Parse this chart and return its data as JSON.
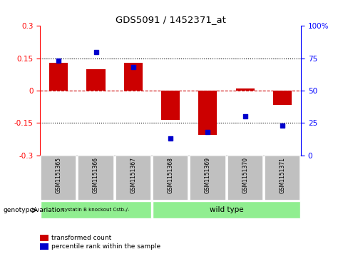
{
  "title": "GDS5091 / 1452371_at",
  "samples": [
    "GSM1151365",
    "GSM1151366",
    "GSM1151367",
    "GSM1151368",
    "GSM1151369",
    "GSM1151370",
    "GSM1151371"
  ],
  "red_values": [
    0.13,
    0.1,
    0.13,
    -0.135,
    -0.205,
    0.01,
    -0.065
  ],
  "blue_percentile": [
    73,
    80,
    68,
    13,
    18,
    30,
    23
  ],
  "ylim_left": [
    -0.3,
    0.3
  ],
  "ylim_right": [
    0,
    100
  ],
  "yticks_left": [
    -0.3,
    -0.15,
    0,
    0.15,
    0.3
  ],
  "yticks_right": [
    0,
    25,
    50,
    75,
    100
  ],
  "dotted_lines": [
    -0.15,
    0.15
  ],
  "group1_samples": [
    0,
    1,
    2
  ],
  "group2_samples": [
    3,
    4,
    5,
    6
  ],
  "group1_label": "cystatin B knockout Cstb-/-",
  "group2_label": "wild type",
  "group1_color": "#90EE90",
  "group2_color": "#90EE90",
  "bar_color": "#CC0000",
  "dot_color": "#0000CC",
  "genotype_label": "genotype/variation",
  "legend_red": "transformed count",
  "legend_blue": "percentile rank within the sample",
  "xlabel_area_color": "#C0C0C0"
}
